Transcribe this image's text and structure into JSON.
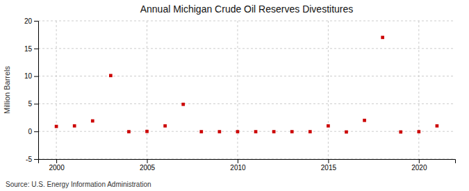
{
  "chart_data": {
    "type": "scatter",
    "title": "Annual Michigan Crude Oil Reserves Divestitures",
    "ylabel": "Million Barrels",
    "annotations": [
      "Source: U.S. Energy Information Administration"
    ],
    "x": [
      2000,
      2001,
      2002,
      2003,
      2004,
      2005,
      2006,
      2007,
      2008,
      2009,
      2010,
      2011,
      2012,
      2013,
      2014,
      2015,
      2016,
      2017,
      2018,
      2019,
      2020,
      2021
    ],
    "values": [
      0.9,
      1.0,
      1.9,
      10.1,
      -0.05,
      0.0,
      1.0,
      4.9,
      -0.05,
      -0.05,
      -0.05,
      -0.05,
      -0.05,
      -0.05,
      -0.05,
      1.0,
      -0.1,
      2.0,
      17.0,
      -0.1,
      -0.05,
      1.0
    ],
    "color": "#cc0000",
    "marker": "square",
    "xlim": [
      1999,
      2022
    ],
    "xticks": [
      2000,
      2005,
      2010,
      2015,
      2020
    ],
    "ylim": [
      -5,
      20
    ],
    "yticks": [
      -5,
      0,
      5,
      10,
      15,
      20
    ],
    "grid": true
  }
}
